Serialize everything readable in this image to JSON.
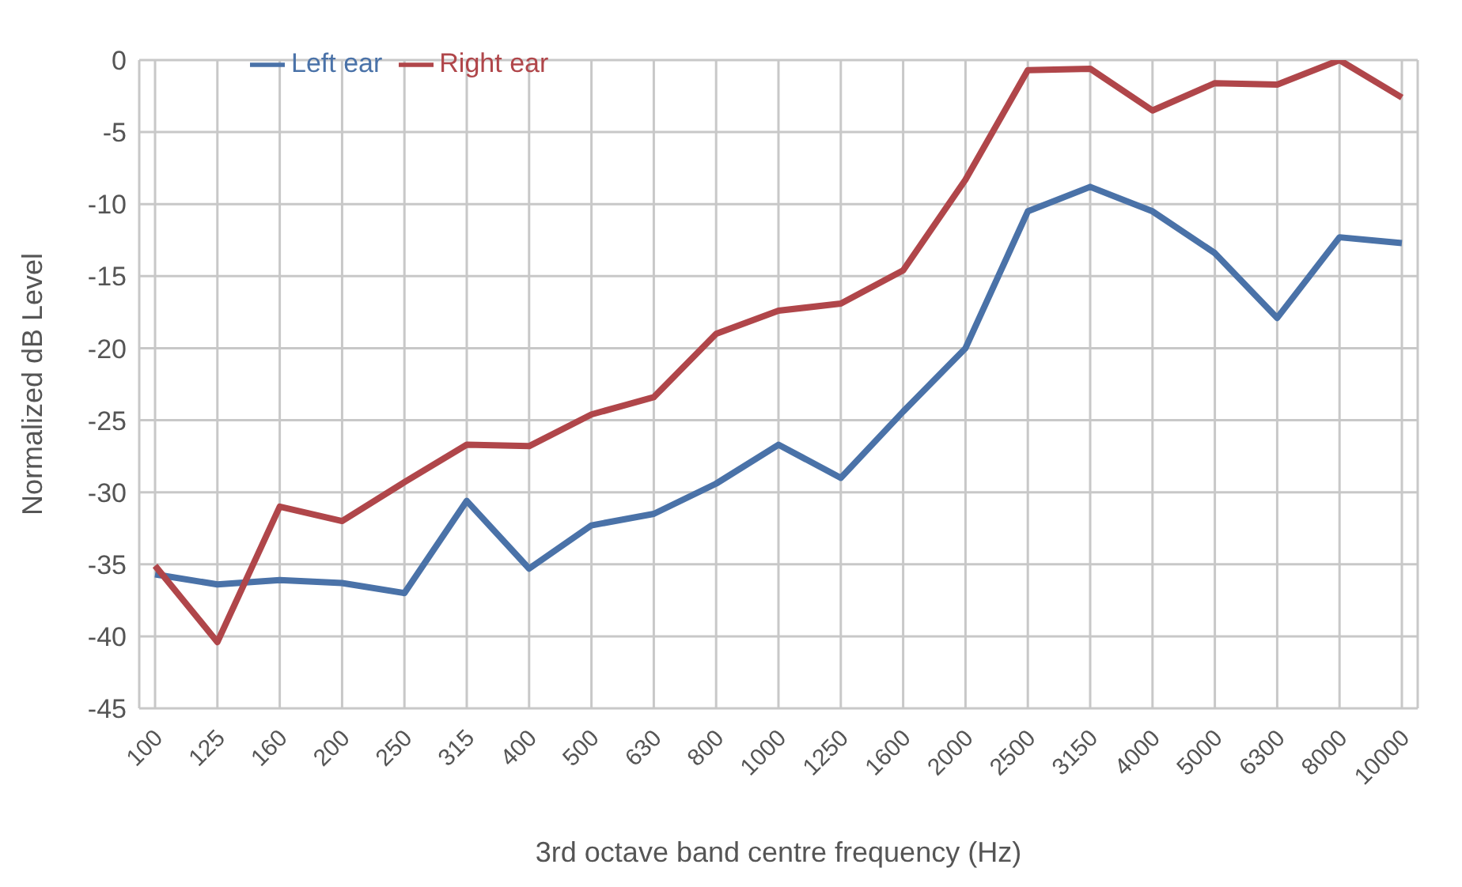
{
  "chart_data": {
    "type": "line",
    "xlabel": "3rd octave band centre frequency (Hz)",
    "ylabel": "Normalized dB Level",
    "categories": [
      "100",
      "125",
      "160",
      "200",
      "250",
      "315",
      "400",
      "500",
      "630",
      "800",
      "1000",
      "1250",
      "1600",
      "2000",
      "2500",
      "3150",
      "4000",
      "5000",
      "6300",
      "8000",
      "10000"
    ],
    "series": [
      {
        "name": "Left ear",
        "color": "#4a72a8",
        "values": [
          -35.7,
          -36.4,
          -36.1,
          -36.3,
          -37.0,
          -30.6,
          -35.3,
          -32.3,
          -31.5,
          -29.4,
          -26.7,
          -29.0,
          -24.4,
          -20.0,
          -10.5,
          -8.8,
          -10.5,
          -13.4,
          -17.9,
          -12.3,
          -12.7
        ]
      },
      {
        "name": "Right ear",
        "color": "#b0464a",
        "values": [
          -35.1,
          -40.4,
          -31.0,
          -32.0,
          -29.3,
          -26.7,
          -26.8,
          -24.6,
          -23.4,
          -19.0,
          -17.4,
          -16.9,
          -14.6,
          -8.3,
          -0.7,
          -0.6,
          -3.5,
          -1.6,
          -1.7,
          0,
          -2.6
        ]
      }
    ],
    "ylim": [
      -45,
      0
    ],
    "yticks": [
      -45,
      -40,
      -35,
      -30,
      -25,
      -20,
      -15,
      -10,
      -5,
      0
    ],
    "grid": true,
    "legend": "top left",
    "marker": "none",
    "line_style": "solid"
  }
}
